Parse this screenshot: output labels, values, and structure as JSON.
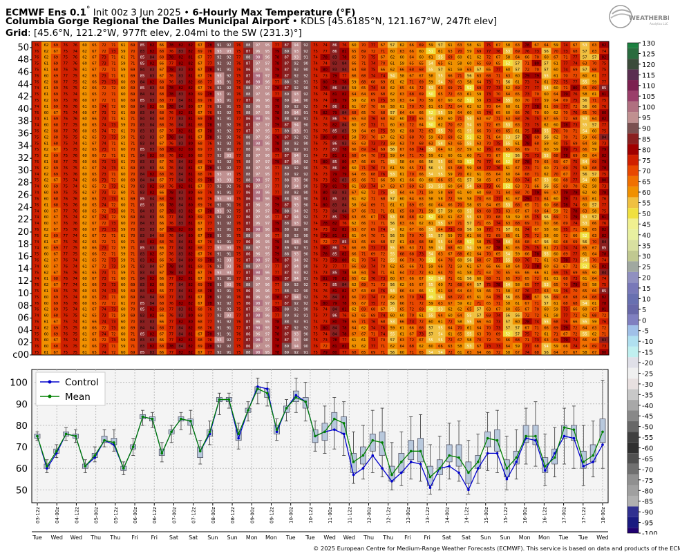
{
  "header": {
    "line1_model": "ECMWF Ens 0.1",
    "line1_init": " Init 00z 3 Jun 2025 ",
    "line1_product": "6-Hourly Max Temperature (",
    "line1_unit": "F)",
    "line2_station": "Columbia Gorge Regional the Dalles Municipal Airport",
    "line2_info": " • KDLS [45.6185°N, 121.167°W, 247ft elev]",
    "line3_label": "Grid",
    "line3_info": ": [45.6°N, 121.2°W, 977ft elev, 2.04mi to the SW (231.3)°]"
  },
  "logo": {
    "text": "WEATHERBELL",
    "subtext": "Analytics LLC"
  },
  "copyright": "© 2025 European Centre for Medium-Range Weather Forecasts (ECMWF). This service is based on data and products of the ECMWF.",
  "chart_data": [
    {
      "type": "heatmap",
      "description_rows": "ensemble members c00 (control) and 01-50",
      "row_labels": [
        "50",
        "48",
        "46",
        "44",
        "42",
        "40",
        "38",
        "36",
        "34",
        "32",
        "30",
        "28",
        "26",
        "24",
        "22",
        "20",
        "18",
        "16",
        "14",
        "12",
        "10",
        "08",
        "06",
        "04",
        "02",
        "c00"
      ],
      "columns": [
        "03-12z",
        "04-00z",
        "04-12z",
        "05-00z",
        "05-12z",
        "06-00z",
        "06-12z",
        "07-00z",
        "07-12z",
        "08-00z",
        "08-12z",
        "09-00z",
        "09-12z",
        "10-00z",
        "10-12z",
        "11-00z",
        "11-12z",
        "12-00z",
        "12-12z",
        "13-00z",
        "13-12z",
        "14-00z",
        "14-12z",
        "15-00z",
        "15-12z",
        "16-00z",
        "16-12z",
        "17-00z",
        "17-12z",
        "18-00z"
      ],
      "cells_per_column": 2,
      "member_values_approx_by_step": [
        75,
        61,
        68,
        76,
        75,
        61,
        66,
        73,
        72,
        60,
        70,
        84,
        83,
        67,
        77,
        83,
        81,
        68,
        77,
        92,
        92,
        76,
        87,
        97,
        96,
        78,
        88,
        93,
        91,
        75,
        77,
        82,
        80,
        63,
        66,
        72,
        71,
        58,
        63,
        68,
        67,
        56,
        60,
        66,
        65,
        58,
        64,
        70,
        71,
        59,
        63,
        72,
        73,
        60,
        65,
        73,
        73,
        59,
        64,
        78
      ]
    },
    {
      "type": "line",
      "xlabel": "",
      "ylabel": "",
      "ylim": [
        44,
        106
      ],
      "yticks": [
        50,
        60,
        70,
        80,
        90,
        100
      ],
      "x_ticks": [
        "03-12z",
        "04-00z",
        "04-12z",
        "05-00z",
        "05-12z",
        "06-00z",
        "06-12z",
        "07-00z",
        "07-12z",
        "08-00z",
        "08-12z",
        "09-00z",
        "09-12z",
        "10-00z",
        "10-12z",
        "11-00z",
        "11-12z",
        "12-00z",
        "12-12z",
        "13-00z",
        "13-12z",
        "14-00z",
        "14-12z",
        "15-00z",
        "15-12z",
        "16-00z",
        "16-12z",
        "17-00z",
        "17-12z",
        "18-00z"
      ],
      "day_labels": [
        "Tue",
        "Wed",
        "Wed",
        "Thu",
        "Thu",
        "Fri",
        "Fri",
        "Sat",
        "Sat",
        "Sun",
        "Sun",
        "Mon",
        "Mon",
        "Tue",
        "Tue",
        "Wed",
        "Wed",
        "Thu",
        "Thu",
        "Fri",
        "Fri",
        "Sat",
        "Sat",
        "Sun",
        "Sun",
        "Mon",
        "Mon",
        "Tue",
        "Tue",
        "Wed"
      ],
      "legend": {
        "position": "top-left",
        "entries": [
          "Control",
          "Mean"
        ]
      },
      "series": [
        {
          "name": "Control",
          "color": "#0000cc",
          "values": [
            75,
            60,
            67,
            76,
            75,
            61,
            65,
            73,
            71,
            60,
            70,
            84,
            83,
            67,
            77,
            83,
            82,
            68,
            76,
            92,
            92,
            74,
            87,
            98,
            97,
            77,
            88,
            94,
            91,
            75,
            77,
            78,
            76,
            57,
            60,
            66,
            60,
            54,
            58,
            63,
            62,
            51,
            60,
            61,
            58,
            50,
            60,
            67,
            67,
            55,
            63,
            74,
            73,
            59,
            67,
            75,
            74,
            61,
            63,
            71
          ]
        },
        {
          "name": "Mean",
          "color": "#008000",
          "values": [
            75,
            61,
            68,
            76,
            75,
            61,
            66,
            73,
            72,
            60,
            70,
            84,
            83,
            67,
            77,
            83,
            82,
            68,
            77,
            92,
            92,
            76,
            87,
            97,
            95,
            78,
            88,
            93,
            91,
            75,
            77,
            83,
            81,
            63,
            66,
            73,
            72,
            57,
            63,
            68,
            68,
            56,
            60,
            66,
            65,
            58,
            63,
            74,
            73,
            60,
            65,
            75,
            75,
            61,
            65,
            79,
            78,
            63,
            66,
            77
          ]
        }
      ],
      "boxes": {
        "q1": [
          74,
          60,
          67,
          75,
          74,
          60,
          65,
          72,
          71,
          59,
          69,
          83,
          82,
          66,
          76,
          82,
          80,
          65,
          75,
          91,
          91,
          73,
          86,
          95,
          93,
          76,
          86,
          91,
          88,
          72,
          73,
          78,
          76,
          58,
          62,
          68,
          66,
          54,
          58,
          64,
          63,
          52,
          57,
          63,
          61,
          53,
          60,
          70,
          68,
          56,
          62,
          72,
          71,
          58,
          62,
          74,
          73,
          60,
          63,
          72
        ],
        "q3": [
          76,
          62,
          69,
          77,
          76,
          62,
          67,
          75,
          74,
          61,
          71,
          85,
          84,
          69,
          78,
          84,
          83,
          70,
          78,
          93,
          93,
          78,
          88,
          98,
          97,
          80,
          89,
          96,
          93,
          78,
          81,
          86,
          84,
          67,
          70,
          76,
          77,
          61,
          67,
          73,
          74,
          61,
          64,
          71,
          71,
          63,
          66,
          77,
          78,
          64,
          68,
          80,
          80,
          65,
          69,
          80,
          80,
          68,
          71,
          83
        ],
        "wlo": [
          73,
          58,
          65,
          73,
          72,
          58,
          63,
          70,
          68,
          57,
          66,
          80,
          79,
          63,
          72,
          78,
          76,
          62,
          71,
          85,
          88,
          69,
          82,
          90,
          89,
          73,
          82,
          86,
          82,
          68,
          67,
          69,
          66,
          53,
          55,
          58,
          56,
          50,
          52,
          55,
          54,
          48,
          50,
          55,
          54,
          48,
          53,
          59,
          58,
          50,
          55,
          62,
          61,
          52,
          56,
          62,
          60,
          52,
          56,
          60
        ],
        "whi": [
          77,
          64,
          71,
          79,
          78,
          64,
          70,
          78,
          78,
          63,
          74,
          87,
          86,
          72,
          80,
          86,
          87,
          73,
          82,
          95,
          95,
          81,
          91,
          102,
          100,
          83,
          92,
          102,
          100,
          82,
          89,
          93,
          91,
          77,
          80,
          87,
          88,
          72,
          77,
          84,
          85,
          71,
          75,
          81,
          82,
          73,
          76,
          86,
          87,
          75,
          78,
          88,
          91,
          76,
          79,
          88,
          89,
          80,
          82,
          101
        ]
      }
    }
  ],
  "colorbar": {
    "labels": [
      "130",
      "125",
      "120",
      "115",
      "110",
      "105",
      "100",
      "95",
      "90",
      "85",
      "80",
      "75",
      "70",
      "65",
      "60",
      "55",
      "50",
      "45",
      "40",
      "35",
      "30",
      "25",
      "20",
      "15",
      "10",
      "5",
      "0",
      "-5",
      "-10",
      "-15",
      "-20",
      "-25",
      "-30",
      "-35",
      "-40",
      "-45",
      "-50",
      "-55",
      "-60",
      "-65",
      "-70",
      "-75",
      "-80",
      "-85",
      "-90",
      "-95",
      "-100"
    ],
    "colors": [
      "#1c8040",
      "#2a6b3e",
      "#3b4b3a",
      "#5a2e50",
      "#7c2050",
      "#9a3e6a",
      "#b07080",
      "#c09090",
      "#7a5050",
      "#8a2020",
      "#a00000",
      "#d02000",
      "#e84800",
      "#f07000",
      "#f09000",
      "#f0c040",
      "#f0e040",
      "#f0f090",
      "#e8f0a0",
      "#d8e0a0",
      "#c0c890",
      "#a0a8a0",
      "#9090c0",
      "#7878b8",
      "#6870b0",
      "#6868a8",
      "#8080c0",
      "#a0c0e8",
      "#b0e0f0",
      "#c0f0f0",
      "#e0e0e8",
      "#f0f0f0",
      "#e8e0e0",
      "#c8c8c8",
      "#a8a8a8",
      "#888888",
      "#686868",
      "#404040",
      "#303030",
      "#505050",
      "#707070",
      "#909090",
      "#a0a0a0",
      "#b0b0b0",
      "#303090",
      "#1a1a80",
      "#200070"
    ]
  }
}
